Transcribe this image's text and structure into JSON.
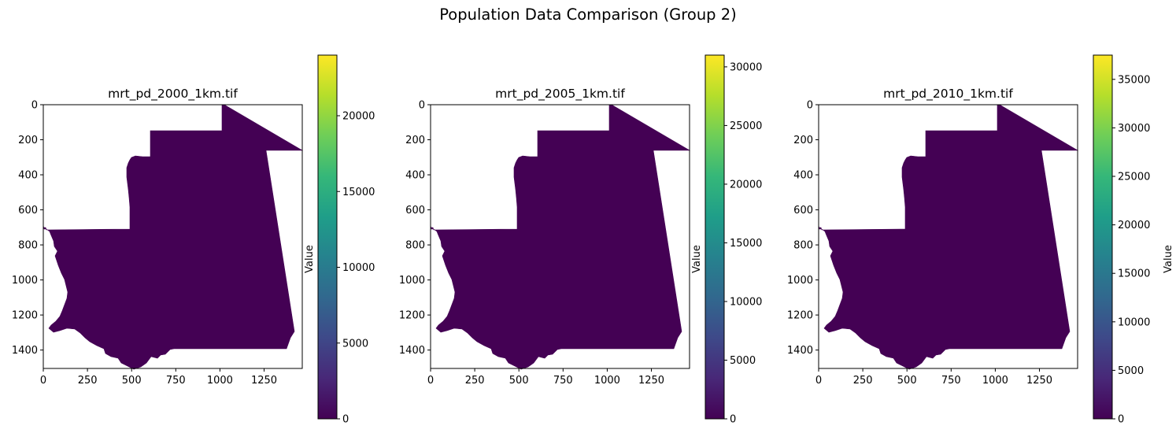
{
  "figure": {
    "suptitle": "Population Data Comparison (Group 2)"
  },
  "colors": {
    "data_fill": "#440154",
    "viridis": [
      "#440154",
      "#482878",
      "#3e4989",
      "#31688e",
      "#26828e",
      "#1f9e89",
      "#35b779",
      "#6ece58",
      "#b5de2b",
      "#fde725"
    ]
  },
  "chart_data": [
    {
      "type": "heatmap",
      "title": "mrt_pd_2000_1km.tif",
      "xlabel": "",
      "ylabel": "",
      "xlim": [
        0,
        1466
      ],
      "ylim": [
        1505,
        0
      ],
      "xticks": [
        0,
        250,
        500,
        750,
        1000,
        1250
      ],
      "yticks": [
        0,
        200,
        400,
        600,
        800,
        1000,
        1200,
        1400
      ],
      "colorbar": {
        "label": "Value",
        "range": [
          0,
          24000
        ],
        "ticks": [
          0,
          5000,
          10000,
          15000,
          20000
        ]
      },
      "grid": false
    },
    {
      "type": "heatmap",
      "title": "mrt_pd_2005_1km.tif",
      "xlabel": "",
      "ylabel": "",
      "xlim": [
        0,
        1466
      ],
      "ylim": [
        1505,
        0
      ],
      "xticks": [
        0,
        250,
        500,
        750,
        1000,
        1250
      ],
      "yticks": [
        0,
        200,
        400,
        600,
        800,
        1000,
        1200,
        1400
      ],
      "colorbar": {
        "label": "Value",
        "range": [
          0,
          31000
        ],
        "ticks": [
          0,
          5000,
          10000,
          15000,
          20000,
          25000,
          30000
        ]
      },
      "grid": false
    },
    {
      "type": "heatmap",
      "title": "mrt_pd_2010_1km.tif",
      "xlabel": "",
      "ylabel": "",
      "xlim": [
        0,
        1466
      ],
      "ylim": [
        1505,
        0
      ],
      "xticks": [
        0,
        250,
        500,
        750,
        1000,
        1250
      ],
      "yticks": [
        0,
        200,
        400,
        600,
        800,
        1000,
        1200,
        1400
      ],
      "colorbar": {
        "label": "Value",
        "range": [
          0,
          37500
        ],
        "ticks": [
          0,
          5000,
          10000,
          15000,
          20000,
          25000,
          30000,
          35000
        ]
      },
      "grid": false
    }
  ]
}
